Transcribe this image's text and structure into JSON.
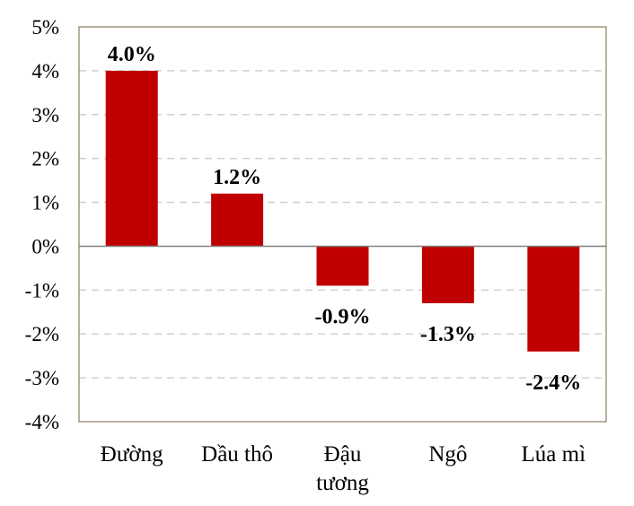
{
  "chart_data": {
    "type": "bar",
    "title": "",
    "xlabel": "",
    "ylabel": "",
    "categories": [
      [
        "Đường"
      ],
      [
        "Dầu thô"
      ],
      [
        "Đậu",
        "tương"
      ],
      [
        "Ngô"
      ],
      [
        "Lúa mì"
      ]
    ],
    "values": [
      4.0,
      1.2,
      -0.9,
      -1.3,
      -2.4
    ],
    "data_labels": [
      "4.0%",
      "1.2%",
      "-0.9%",
      "-1.3%",
      "-2.4%"
    ],
    "ylim": [
      -4,
      5
    ],
    "yticks": [
      5,
      4,
      3,
      2,
      1,
      0,
      -1,
      -2,
      -3,
      -4
    ],
    "ytick_labels": [
      "5%",
      "4%",
      "3%",
      "2%",
      "1%",
      "0%",
      "-1%",
      "-2%",
      "-3%",
      "-4%"
    ],
    "grid": true,
    "bar_color": "#c00000",
    "frame_color": "#8b7d5e",
    "grid_color": "#d0d0d0",
    "zero_line_color": "#808080"
  }
}
